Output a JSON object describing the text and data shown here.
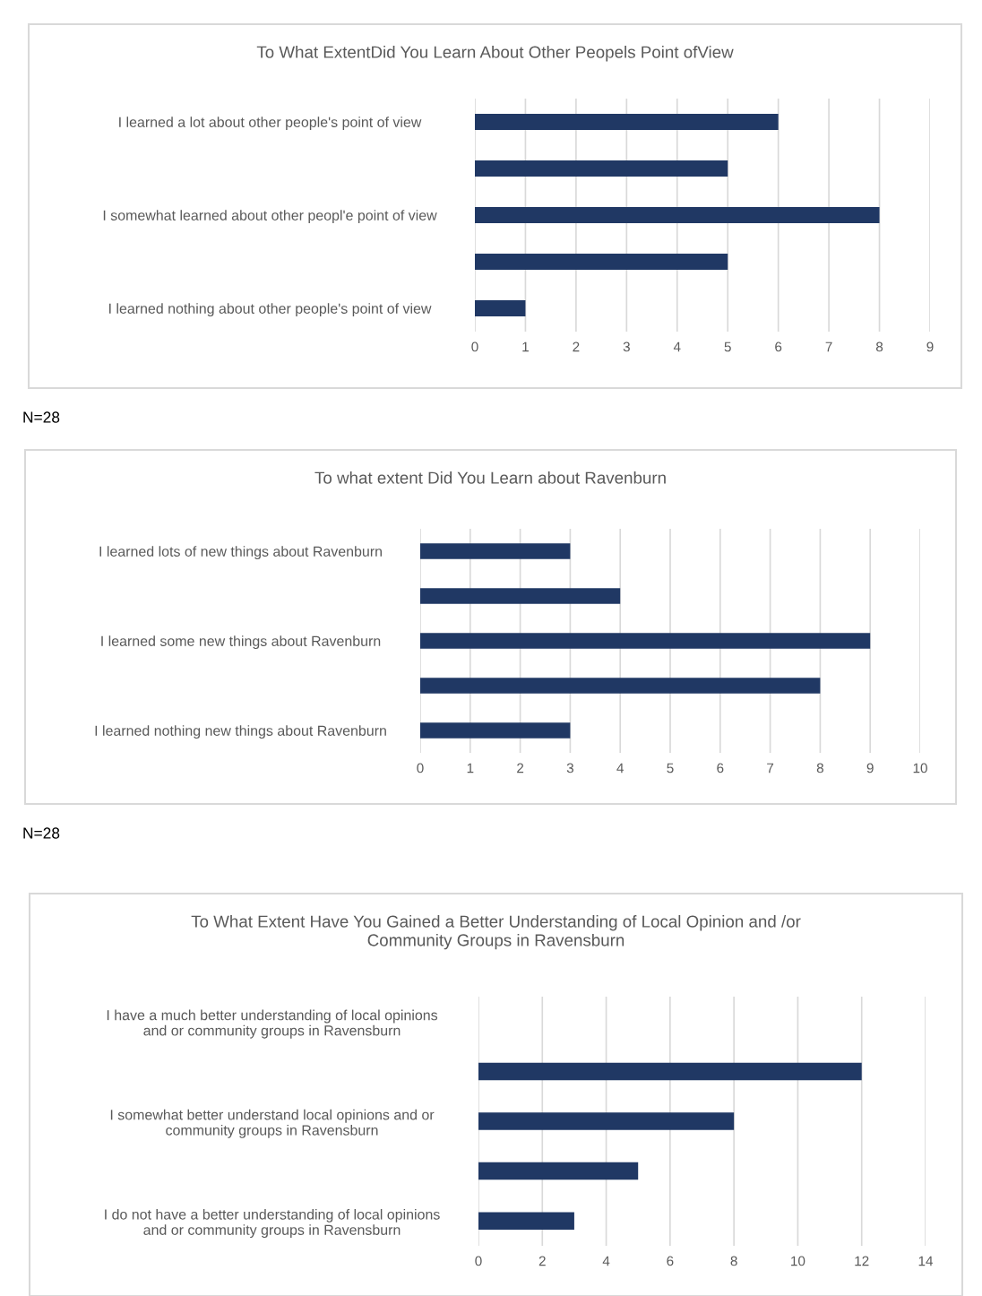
{
  "chart_data": [
    {
      "type": "bar",
      "orientation": "horizontal",
      "title": "To What ExtentDid You Learn About Other Peopels Point ofView",
      "categories": [
        "I learned a lot about other people's point of view",
        null,
        "I somewhat learned about other peopl'e point of view",
        null,
        "I learned nothing about other people's point of view"
      ],
      "values": [
        6,
        5,
        8,
        5,
        1
      ],
      "color": "#203864",
      "xlim": [
        0,
        9
      ],
      "xticks": [
        0,
        1,
        2,
        3,
        4,
        5,
        6,
        7,
        8,
        9
      ],
      "grid": "x",
      "legend": false,
      "annotations": [
        "N=28"
      ]
    },
    {
      "type": "bar",
      "orientation": "horizontal",
      "title": "To what extent Did You Learn about Ravenburn",
      "categories": [
        "I learned lots of new things about Ravenburn",
        null,
        "I learned some new things about Ravenburn",
        null,
        "I learned nothing new things about Ravenburn"
      ],
      "values": [
        3,
        4,
        9,
        8,
        3
      ],
      "color": "#203864",
      "xlim": [
        0,
        10
      ],
      "xticks": [
        0,
        1,
        2,
        3,
        4,
        5,
        6,
        7,
        8,
        9,
        10
      ],
      "grid": "x",
      "legend": false,
      "annotations": [
        "N=28"
      ]
    },
    {
      "type": "bar",
      "orientation": "horizontal",
      "title": "To What Extent Have You Gained a Better Understanding of Local Opinion and /or\nCommunity Groups in Ravensburn",
      "categories": [
        "I have a much better understanding of local opinions\nand or community groups in Ravensburn",
        null,
        "I somewhat better understand local opinions and or\ncommunity groups in Ravensburn",
        null,
        "I do not have a better understanding of local opinions\nand or community groups in Ravensburn"
      ],
      "values": [
        0,
        12,
        8,
        5,
        3
      ],
      "color": "#203864",
      "xlim": [
        0,
        14
      ],
      "xticks": [
        0,
        2,
        4,
        6,
        8,
        10,
        12,
        14
      ],
      "grid": "x",
      "legend": false
    }
  ]
}
